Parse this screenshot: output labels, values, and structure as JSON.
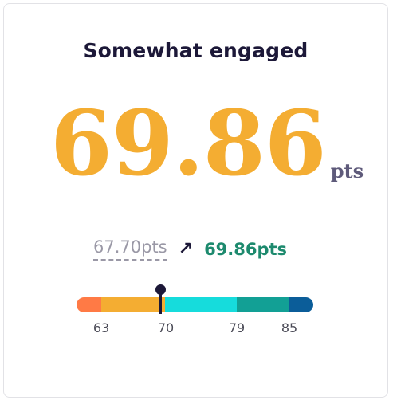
{
  "card": {
    "title": "Somewhat engaged",
    "score_value": "69.86",
    "score_unit": "pts",
    "previous": "67.70pts",
    "current": "69.86pts"
  },
  "scale": {
    "marker_value": 69.86,
    "segments": [
      {
        "color": "#ff7a45"
      },
      {
        "color": "#f4ad32"
      },
      {
        "color": "#16dcdc"
      },
      {
        "color": "#12a095"
      },
      {
        "color": "#0b5d99"
      }
    ],
    "ticks": [
      "63",
      "70",
      "79",
      "85"
    ]
  }
}
